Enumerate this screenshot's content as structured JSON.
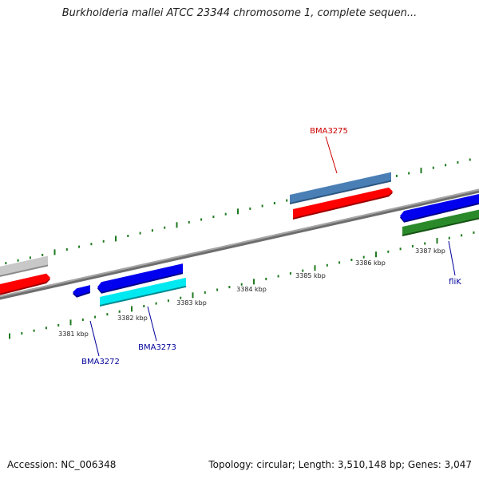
{
  "title": "Burkholderia mallei ATCC 23344 chromosome 1, complete sequen...",
  "footer": {
    "accession": "Accession: NC_006348",
    "topology": "Topology: circular; Length: 3,510,148 bp; Genes: 3,047"
  },
  "colors": {
    "backbone": "#8c8c8c",
    "tick": "#1f7a1f",
    "label_forward": "#cc0000",
    "label_reverse": "#000099",
    "red": "#ff0000",
    "blue": "#0000ee",
    "steelblue": "#4a7fb5",
    "cyan": "#00e8f0",
    "gray": "#c8c8c8",
    "green": "#2a8a2a"
  },
  "scale": {
    "labels": [
      "3381 kbp",
      "3382 kbp",
      "3383 kbp",
      "3384 kbp",
      "3385 kbp",
      "3386 kbp",
      "3387 kbp"
    ]
  },
  "genes": [
    {
      "name": "BMA3275",
      "color": "red"
    },
    {
      "name": "BMA3273",
      "color": "blue"
    },
    {
      "name": "BMA3272",
      "color": "blue"
    },
    {
      "name": "fliK",
      "color": "blue"
    }
  ]
}
